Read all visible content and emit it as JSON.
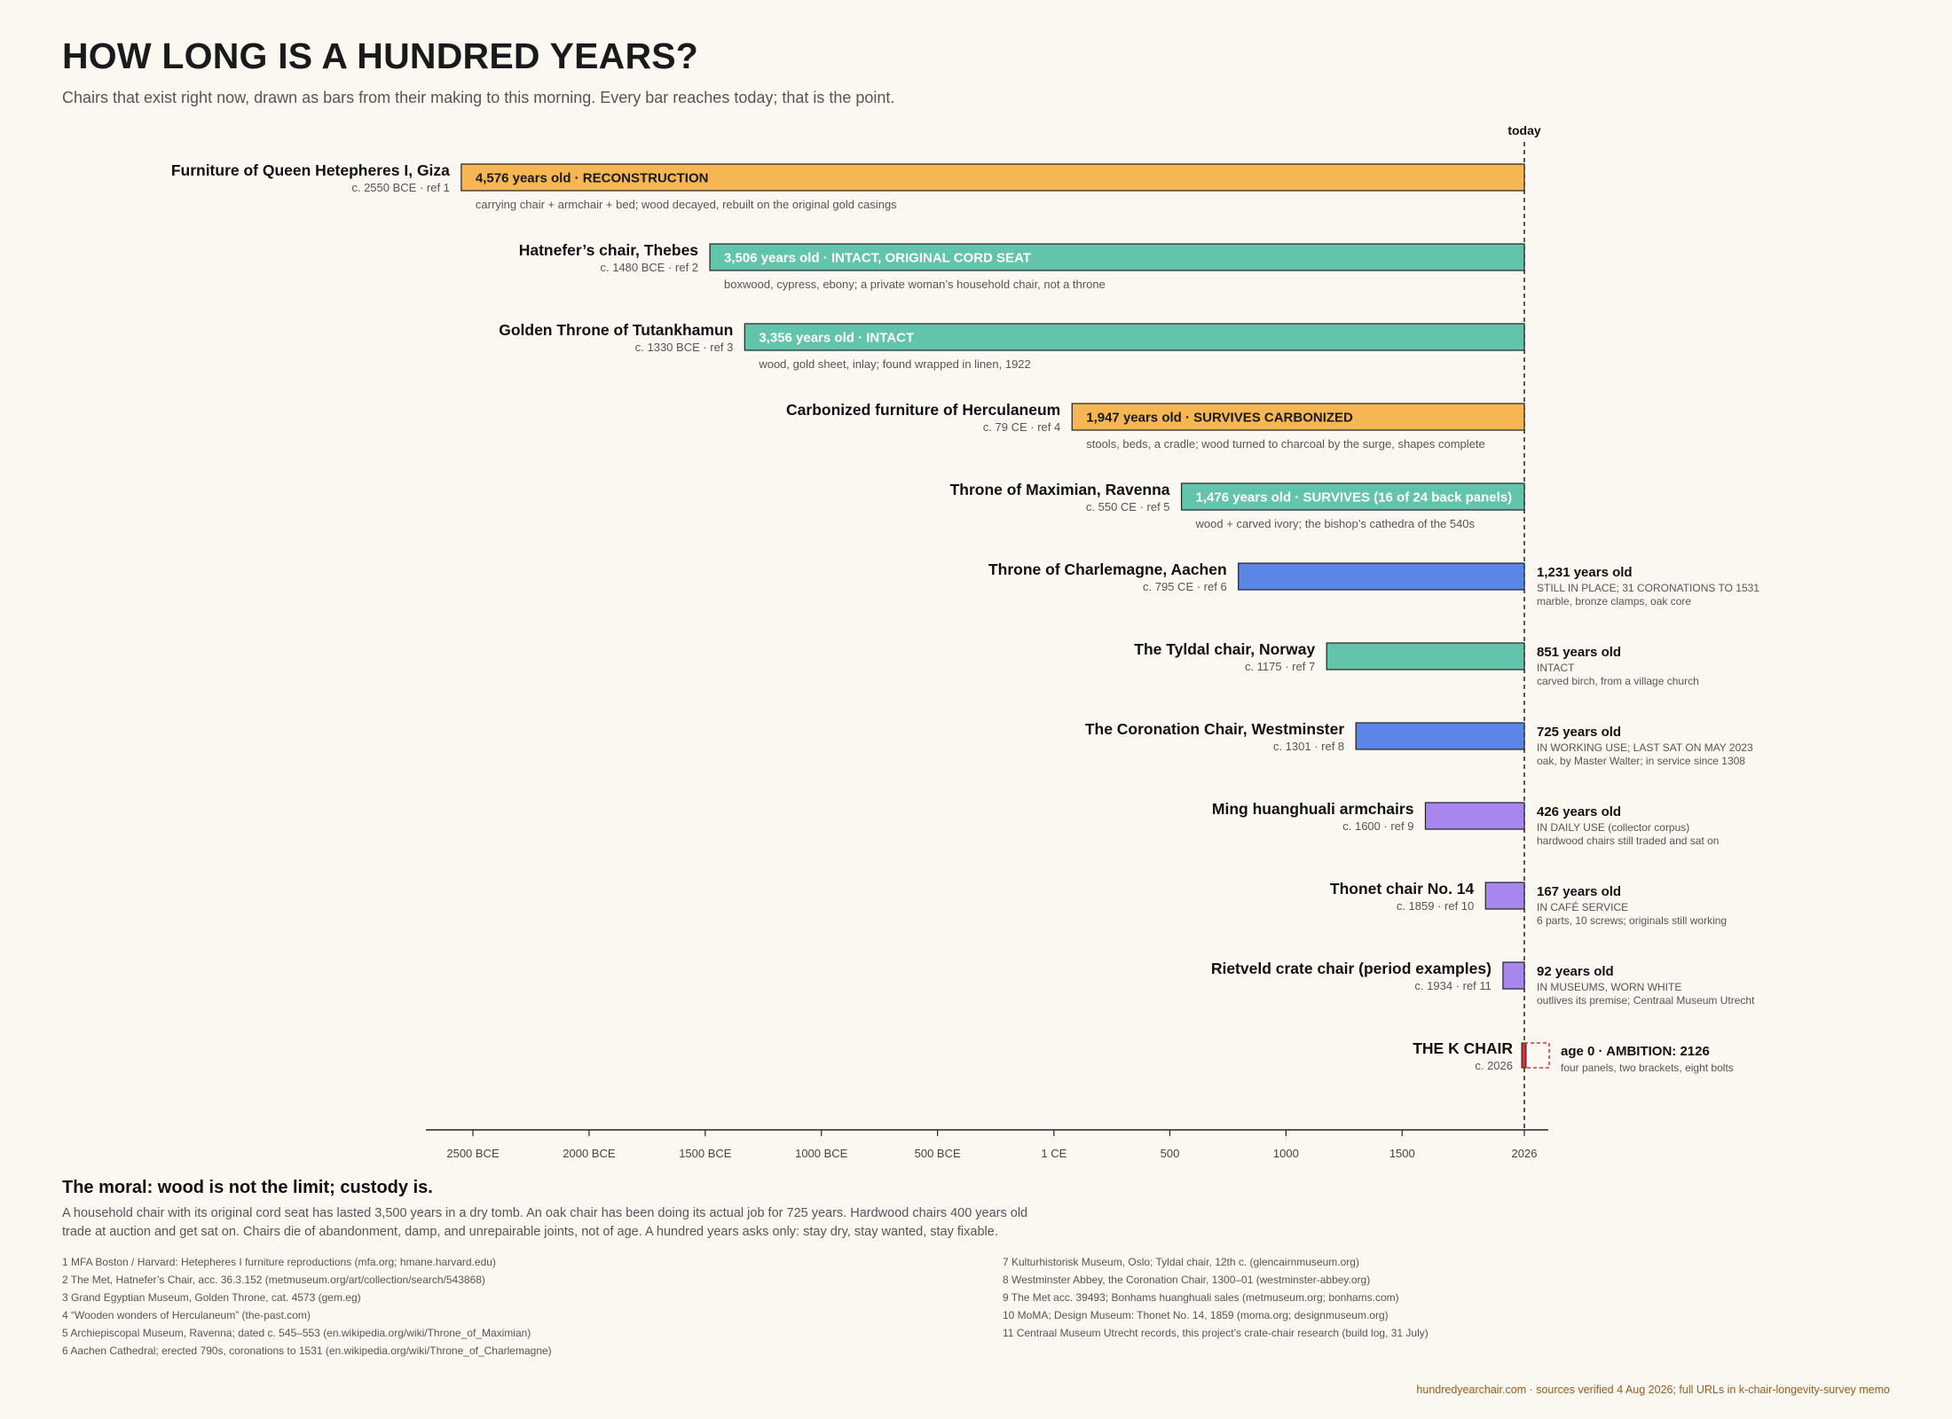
{
  "title": "HOW LONG IS A HUNDRED YEARS?",
  "subtitle": "Chairs that exist right now, drawn as bars from their making to this morning. Every bar reaches today; that is the point.",
  "chart_data": {
    "type": "bar",
    "orientation": "horizontal",
    "x_axis": {
      "ticks": [
        -2500,
        -2000,
        -1500,
        -1000,
        -500,
        1,
        500,
        1000,
        1500,
        2026
      ],
      "tick_labels": [
        "2500 BCE",
        "2000 BCE",
        "1500 BCE",
        "1000 BCE",
        "500 BCE",
        "1 CE",
        "500",
        "1000",
        "1500",
        "2026"
      ],
      "range": [
        -2700,
        2110
      ]
    },
    "today": {
      "year": 2026,
      "label": "today"
    },
    "colors": {
      "reconstruction": "#f5b653",
      "intact": "#62c5ab",
      "in_use": "#5b86e6",
      "collector": "#a786ee",
      "ambition": "#d3323a"
    },
    "rows": [
      {
        "name": "Furniture of Queen Hetepheres I, Giza",
        "date_label": "c. 2550 BCE · ref 1",
        "start": -2550,
        "category": "reconstruction",
        "age_label": "4,576 years old · RECONSTRUCTION",
        "label_inside": true,
        "note": "carrying chair + armchair + bed; wood decayed, rebuilt on the original gold casings"
      },
      {
        "name": "Hatnefer’s chair, Thebes",
        "date_label": "c. 1480 BCE · ref 2",
        "start": -1480,
        "category": "intact",
        "age_label": "3,506 years old · INTACT, ORIGINAL CORD SEAT",
        "label_inside": true,
        "note": "boxwood, cypress, ebony; a private woman’s household chair, not a throne"
      },
      {
        "name": "Golden Throne of Tutankhamun",
        "date_label": "c. 1330 BCE · ref 3",
        "start": -1330,
        "category": "intact",
        "age_label": "3,356 years old · INTACT",
        "label_inside": true,
        "note": "wood, gold sheet, inlay; found wrapped in linen, 1922"
      },
      {
        "name": "Carbonized furniture of Herculaneum",
        "date_label": "c. 79 CE · ref 4",
        "start": 79,
        "category": "reconstruction",
        "age_label": "1,947 years old · SURVIVES CARBONIZED",
        "label_inside": true,
        "note": "stools, beds, a cradle; wood turned to charcoal by the surge, shapes complete"
      },
      {
        "name": "Throne of Maximian, Ravenna",
        "date_label": "c. 550 CE · ref 5",
        "start": 550,
        "category": "intact",
        "age_label": "1,476 years old · SURVIVES (16 of 24 back panels)",
        "label_inside": true,
        "note": "wood + carved ivory; the bishop’s cathedra of the 540s"
      },
      {
        "name": "Throne of Charlemagne, Aachen",
        "date_label": "c. 795 CE · ref 6",
        "start": 795,
        "category": "in_use",
        "age_label": "1,231 years old",
        "status": "STILL IN PLACE; 31 CORONATIONS TO 1531",
        "note": "marble, bronze clamps, oak core"
      },
      {
        "name": "The Tyldal chair, Norway",
        "date_label": "c. 1175 · ref 7",
        "start": 1175,
        "category": "intact",
        "age_label": "851 years old",
        "status": "INTACT",
        "note": "carved birch, from a village church"
      },
      {
        "name": "The Coronation Chair, Westminster",
        "date_label": "c. 1301 · ref 8",
        "start": 1301,
        "category": "in_use",
        "age_label": "725 years old",
        "status": "IN WORKING USE; LAST SAT ON MAY 2023",
        "note": "oak, by Master Walter; in service since 1308"
      },
      {
        "name": "Ming huanghuali armchairs",
        "date_label": "c. 1600 · ref 9",
        "start": 1600,
        "category": "collector",
        "age_label": "426 years old",
        "status": "IN DAILY USE (collector corpus)",
        "note": "hardwood chairs still traded and sat on"
      },
      {
        "name": "Thonet chair No. 14",
        "date_label": "c. 1859 · ref 10",
        "start": 1859,
        "category": "collector",
        "age_label": "167 years old",
        "status": "IN CAFÉ SERVICE",
        "note": "6 parts, 10 screws; originals still working"
      },
      {
        "name": "Rietveld crate chair (period examples)",
        "date_label": "c. 1934 · ref 11",
        "start": 1934,
        "category": "collector",
        "age_label": "92 years old",
        "status": "IN MUSEUMS, WORN WHITE",
        "note": "outlives its premise; Centraal Museum Utrecht"
      },
      {
        "name": "THE K CHAIR",
        "date_label": "c. 2026",
        "start": 2026,
        "category": "ambition",
        "age_label": "age 0 · AMBITION: 2126",
        "note": "four panels, two brackets, eight bolts",
        "ambition": true
      }
    ]
  },
  "moral": {
    "heading": "The moral: wood is not the limit; custody is.",
    "body": "A household chair with its original cord seat has lasted 3,500 years in a dry tomb. An oak chair has been doing its actual job for 725 years. Hardwood chairs 400 years old trade at auction and get sat on. Chairs die of abandonment, damp, and unrepairable joints, not of age. A hundred years asks only: stay dry, stay wanted, stay fixable."
  },
  "references_left": [
    "1 MFA Boston / Harvard: Hetepheres I furniture reproductions (mfa.org; hmane.harvard.edu)",
    "2 The Met, Hatnefer’s Chair, acc. 36.3.152 (metmuseum.org/art/collection/search/543868)",
    "3 Grand Egyptian Museum, Golden Throne, cat. 4573 (gem.eg)",
    "4 “Wooden wonders of Herculaneum” (the-past.com)",
    "5 Archiepiscopal Museum, Ravenna; dated c. 545–553 (en.wikipedia.org/wiki/Throne_of_Maximian)",
    "6 Aachen Cathedral; erected 790s, coronations to 1531 (en.wikipedia.org/wiki/Throne_of_Charlemagne)"
  ],
  "references_right": [
    "7 Kulturhistorisk Museum, Oslo; Tyldal chair, 12th c. (glencairnmuseum.org)",
    "8 Westminster Abbey, the Coronation Chair, 1300–01 (westminster-abbey.org)",
    "9 The Met acc. 39493; Bonhams huanghuali sales (metmuseum.org; bonhams.com)",
    "10 MoMA; Design Museum: Thonet No. 14, 1859 (moma.org; designmuseum.org)",
    "11 Centraal Museum Utrecht records, this project’s crate-chair research (build log, 31 July)"
  ],
  "footer": "hundredyearchair.com · sources verified 4 Aug 2026; full URLs in k-chair-longevity-survey memo"
}
